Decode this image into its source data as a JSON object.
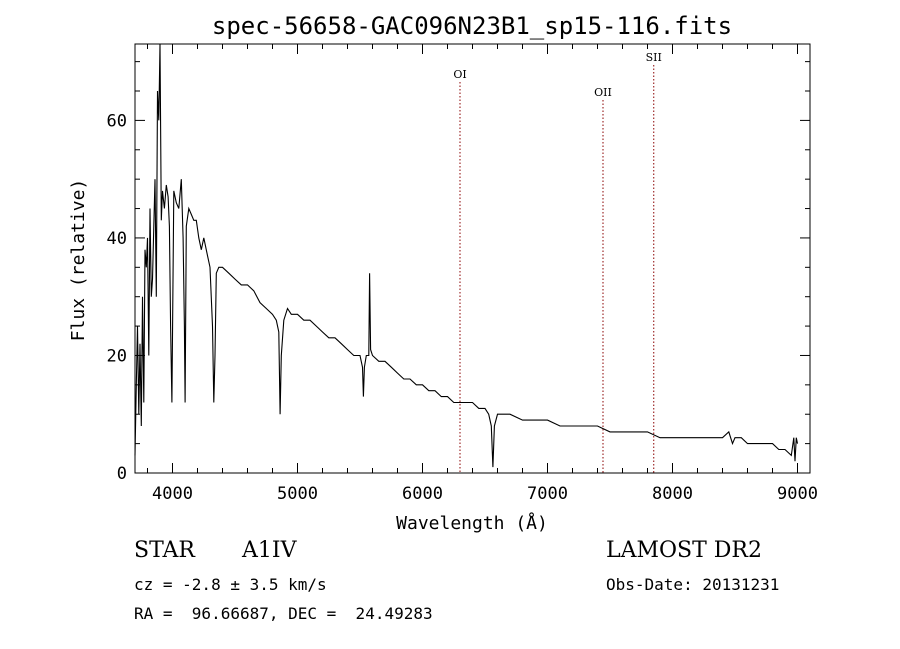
{
  "chart_data": {
    "type": "line",
    "title": "spec-56658-GAC096N23B1_sp15-116.fits",
    "xlabel": "Wavelength (Å)",
    "ylabel": "Flux (relative)",
    "xlim": [
      3700,
      9100
    ],
    "ylim": [
      0,
      73
    ],
    "xticks": [
      4000,
      5000,
      6000,
      7000,
      8000,
      9000
    ],
    "yticks": [
      0,
      20,
      40,
      60
    ],
    "grid": false,
    "series": [
      {
        "x": [
          3700,
          3710,
          3720,
          3730,
          3740,
          3750,
          3760,
          3770,
          3780,
          3790,
          3800,
          3810,
          3820,
          3830,
          3840,
          3850,
          3860,
          3870,
          3880,
          3890,
          3900,
          3910,
          3920,
          3935,
          3950,
          3965,
          3975,
          3985,
          3995,
          4010,
          4030,
          4050,
          4070,
          4085,
          4095,
          4101,
          4110,
          4130,
          4150,
          4170,
          4190,
          4210,
          4230,
          4250,
          4280,
          4300,
          4320,
          4330,
          4340,
          4350,
          4370,
          4400,
          4450,
          4500,
          4550,
          4600,
          4650,
          4700,
          4750,
          4800,
          4830,
          4850,
          4861,
          4870,
          4890,
          4920,
          4950,
          5000,
          5050,
          5100,
          5150,
          5200,
          5250,
          5300,
          5350,
          5400,
          5450,
          5500,
          5520,
          5527,
          5535,
          5550,
          5570,
          5577,
          5585,
          5600,
          5650,
          5700,
          5750,
          5800,
          5850,
          5900,
          5950,
          6000,
          6050,
          6100,
          6150,
          6200,
          6250,
          6300,
          6350,
          6400,
          6450,
          6500,
          6530,
          6550,
          6563,
          6575,
          6600,
          6650,
          6700,
          6800,
          6900,
          7000,
          7100,
          7200,
          7300,
          7400,
          7500,
          7600,
          7700,
          7800,
          7900,
          8000,
          8100,
          8200,
          8300,
          8400,
          8450,
          8480,
          8500,
          8550,
          8600,
          8700,
          8800,
          8850,
          8900,
          8950,
          8970,
          8980,
          8990,
          9000
        ],
        "y": [
          3,
          15,
          25,
          10,
          22,
          8,
          30,
          12,
          38,
          35,
          40,
          20,
          45,
          30,
          33,
          42,
          50,
          30,
          65,
          60,
          75,
          43,
          48,
          45,
          49,
          47,
          42,
          25,
          12,
          48,
          46,
          45,
          50,
          40,
          25,
          12,
          42,
          45,
          44,
          43,
          43,
          40,
          38,
          40,
          37,
          35,
          25,
          12,
          20,
          34,
          35,
          35,
          34,
          33,
          32,
          32,
          31,
          29,
          28,
          27,
          26,
          24,
          10,
          20,
          26,
          28,
          27,
          27,
          26,
          26,
          25,
          24,
          23,
          23,
          22,
          21,
          20,
          20,
          18,
          13,
          18,
          20,
          20,
          34,
          21,
          20,
          19,
          19,
          18,
          17,
          16,
          16,
          15,
          15,
          14,
          14,
          13,
          13,
          12,
          12,
          12,
          12,
          11,
          11,
          10,
          8,
          1,
          8,
          10,
          10,
          10,
          9,
          9,
          9,
          8,
          8,
          8,
          8,
          7,
          7,
          7,
          7,
          6,
          6,
          6,
          6,
          6,
          6,
          7,
          5,
          6,
          6,
          5,
          5,
          5,
          4,
          4,
          3,
          6,
          2,
          6,
          5
        ]
      }
    ],
    "annotations": [
      {
        "label": "OI",
        "x": 6300
      },
      {
        "label": "OII",
        "x": 7444
      },
      {
        "label": "SII",
        "x": 7850
      }
    ]
  },
  "info": {
    "object_class": "STAR",
    "subclass": "A1IV",
    "survey": "LAMOST DR2",
    "cz": "cz = -2.8 ± 3.5 km/s",
    "obs_date": "Obs-Date: 20131231",
    "coords": "RA =  96.66687, DEC =  24.49283"
  },
  "colors": {
    "spectrum": "#000000",
    "line_markers": "#8b0000"
  }
}
